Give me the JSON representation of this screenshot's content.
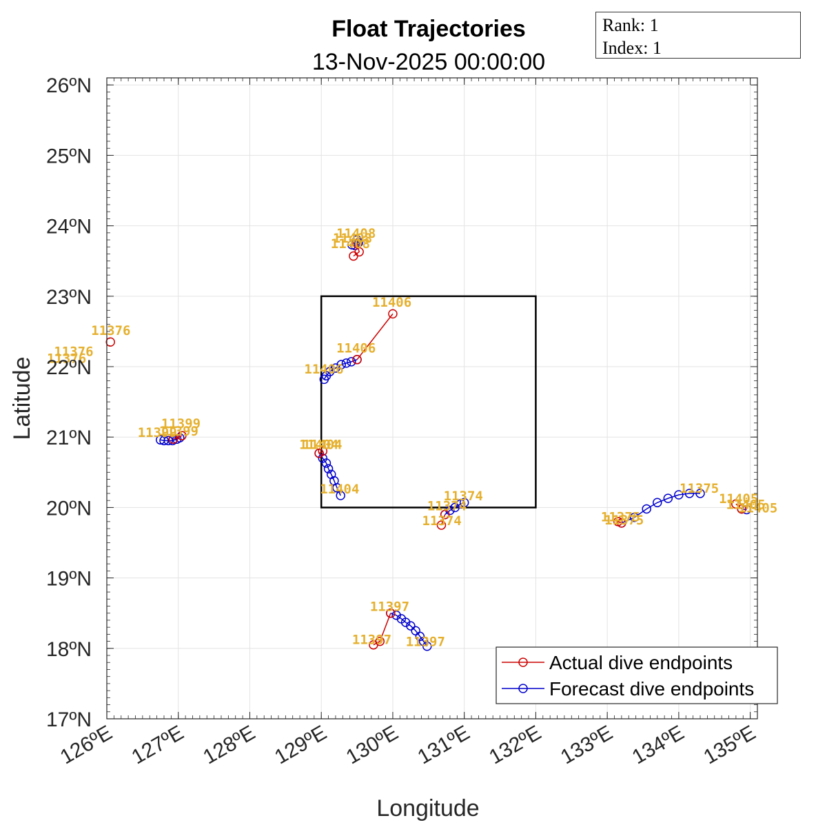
{
  "chart_data": {
    "type": "line",
    "title": "Float Trajectories",
    "subtitle": "13-Nov-2025 00:00:00",
    "xlabel": "Longitude",
    "ylabel": "Latitude",
    "xlim": [
      126,
      135.1
    ],
    "ylim": [
      17,
      26.1
    ],
    "x_ticks": [
      126,
      127,
      128,
      129,
      130,
      131,
      132,
      133,
      134,
      135
    ],
    "x_tick_labels": [
      "126ºE",
      "127ºE",
      "128ºE",
      "129ºE",
      "130ºE",
      "131ºE",
      "132ºE",
      "133ºE",
      "134ºE",
      "135ºE"
    ],
    "y_ticks": [
      17,
      18,
      19,
      20,
      21,
      22,
      23,
      24,
      25,
      26
    ],
    "y_tick_labels": [
      "17ºN",
      "18ºN",
      "19ºN",
      "20ºN",
      "21ºN",
      "22ºN",
      "23ºN",
      "24ºN",
      "25ºN",
      "26ºN"
    ],
    "grid": true,
    "legend_position": "bottom-right",
    "colors": {
      "actual": "#CC0000",
      "forecast": "#0000CC",
      "label": "#E5B02E",
      "box": "#000000"
    },
    "box": {
      "lon": [
        129,
        132
      ],
      "lat": [
        20,
        23
      ]
    },
    "series": [
      {
        "name": "Actual dive endpoints",
        "kind": "actual",
        "paths": [
          [
            [
              126.05,
              22.35
            ]
          ],
          [
            [
              127.05,
              21.02
            ],
            [
              126.93,
              20.97
            ]
          ],
          [
            [
              129.45,
              23.57
            ],
            [
              129.53,
              23.63
            ],
            [
              129.5,
              23.75
            ]
          ],
          [
            [
              130.0,
              22.75
            ],
            [
              129.5,
              22.1
            ]
          ],
          [
            [
              129.02,
              20.8
            ],
            [
              128.97,
              20.77
            ]
          ],
          [
            [
              130.68,
              19.75
            ],
            [
              130.73,
              19.9
            ]
          ],
          [
            [
              133.15,
              19.8
            ],
            [
              133.2,
              19.78
            ]
          ],
          [
            [
              134.8,
              20.05
            ],
            [
              134.88,
              19.98
            ]
          ],
          [
            [
              129.73,
              18.05
            ],
            [
              129.82,
              18.1
            ],
            [
              129.97,
              18.5
            ]
          ]
        ]
      },
      {
        "name": "Forecast dive endpoints",
        "kind": "forecast",
        "paths": [
          [
            [
              126.75,
              20.96
            ],
            [
              126.8,
              20.95
            ],
            [
              126.86,
              20.95
            ],
            [
              126.92,
              20.95
            ],
            [
              126.98,
              20.97
            ],
            [
              127.02,
              20.99
            ]
          ],
          [
            [
              129.43,
              23.73
            ],
            [
              129.47,
              23.72
            ],
            [
              129.52,
              23.76
            ],
            [
              129.5,
              23.8
            ]
          ],
          [
            [
              129.5,
              22.1
            ],
            [
              129.42,
              22.07
            ],
            [
              129.35,
              22.05
            ],
            [
              129.28,
              22.03
            ],
            [
              129.2,
              21.98
            ],
            [
              129.12,
              21.93
            ],
            [
              129.07,
              21.87
            ],
            [
              129.04,
              21.82
            ]
          ],
          [
            [
              128.97,
              20.77
            ],
            [
              129.02,
              20.7
            ],
            [
              129.07,
              20.63
            ],
            [
              129.1,
              20.55
            ],
            [
              129.14,
              20.47
            ],
            [
              129.18,
              20.38
            ],
            [
              129.22,
              20.28
            ],
            [
              129.27,
              20.17
            ]
          ],
          [
            [
              130.73,
              19.9
            ],
            [
              130.8,
              19.96
            ],
            [
              130.87,
              20.0
            ],
            [
              130.95,
              20.05
            ],
            [
              131.0,
              20.07
            ]
          ],
          [
            [
              133.2,
              19.78
            ],
            [
              133.38,
              19.86
            ],
            [
              133.55,
              19.98
            ],
            [
              133.7,
              20.07
            ],
            [
              133.85,
              20.13
            ],
            [
              134.0,
              20.18
            ],
            [
              134.15,
              20.2
            ],
            [
              134.3,
              20.2
            ]
          ],
          [
            [
              134.88,
              19.98
            ],
            [
              134.95,
              19.97
            ]
          ],
          [
            [
              129.97,
              18.5
            ],
            [
              130.05,
              18.47
            ],
            [
              130.12,
              18.42
            ],
            [
              130.18,
              18.37
            ],
            [
              130.25,
              18.32
            ],
            [
              130.32,
              18.25
            ],
            [
              130.38,
              18.17
            ],
            [
              130.43,
              18.1
            ],
            [
              130.48,
              18.03
            ]
          ]
        ]
      }
    ],
    "float_labels": [
      {
        "text": "11376",
        "lon": 126.07,
        "lat": 22.52
      },
      {
        "text": "11376",
        "lon": 125.55,
        "lat": 22.22
      },
      {
        "text": "11376",
        "lon": 125.45,
        "lat": 22.12
      },
      {
        "text": "11399",
        "lon": 127.05,
        "lat": 21.2
      },
      {
        "text": "11399",
        "lon": 126.72,
        "lat": 21.07
      },
      {
        "text": "11399",
        "lon": 127.02,
        "lat": 21.09
      },
      {
        "text": "11408",
        "lon": 129.5,
        "lat": 23.9
      },
      {
        "text": "11408",
        "lon": 129.45,
        "lat": 23.83
      },
      {
        "text": "11408",
        "lon": 129.42,
        "lat": 23.75
      },
      {
        "text": "11406",
        "lon": 130.0,
        "lat": 22.92
      },
      {
        "text": "11406",
        "lon": 129.5,
        "lat": 22.27
      },
      {
        "text": "11406",
        "lon": 129.05,
        "lat": 21.97
      },
      {
        "text": "11404",
        "lon": 128.98,
        "lat": 20.9
      },
      {
        "text": "11404",
        "lon": 129.03,
        "lat": 20.9
      },
      {
        "text": "11404",
        "lon": 129.27,
        "lat": 20.27
      },
      {
        "text": "11374",
        "lon": 131.0,
        "lat": 20.17
      },
      {
        "text": "11374",
        "lon": 130.77,
        "lat": 20.03
      },
      {
        "text": "11374",
        "lon": 130.7,
        "lat": 19.82
      },
      {
        "text": "11375",
        "lon": 134.3,
        "lat": 20.28
      },
      {
        "text": "11375",
        "lon": 133.2,
        "lat": 19.87
      },
      {
        "text": "11375",
        "lon": 133.25,
        "lat": 19.83
      },
      {
        "text": "11405",
        "lon": 134.85,
        "lat": 20.13
      },
      {
        "text": "11405",
        "lon": 134.95,
        "lat": 20.05
      },
      {
        "text": "11405",
        "lon": 135.12,
        "lat": 20.0
      },
      {
        "text": "11397",
        "lon": 129.97,
        "lat": 18.6
      },
      {
        "text": "11397",
        "lon": 129.72,
        "lat": 18.13
      },
      {
        "text": "11397",
        "lon": 130.47,
        "lat": 18.1
      }
    ]
  },
  "info_box": {
    "rank": "Rank: 1",
    "index": "Index: 1"
  }
}
